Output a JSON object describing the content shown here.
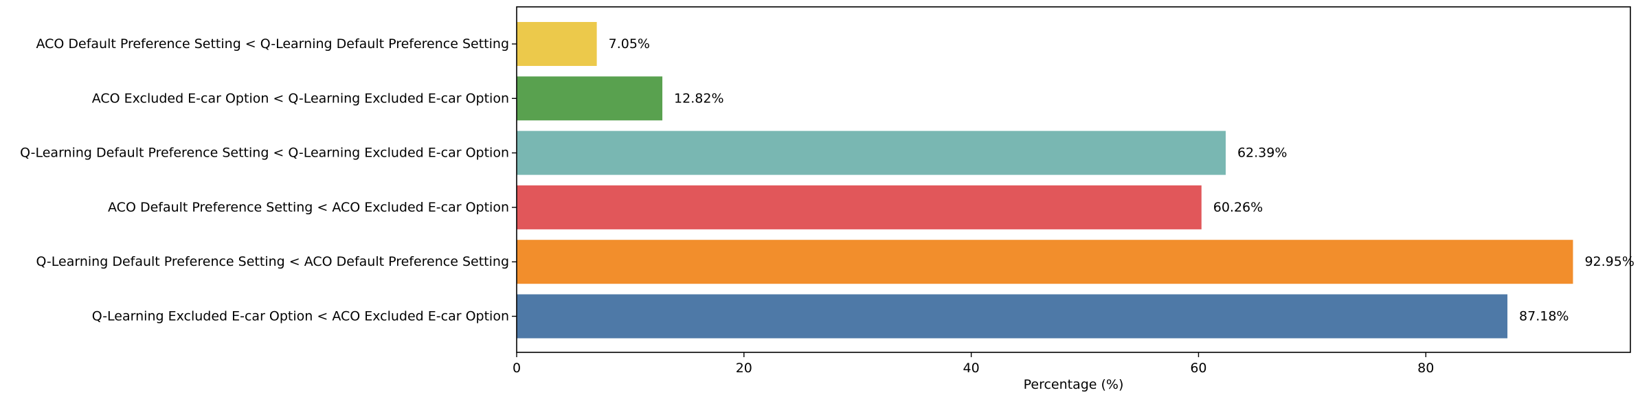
{
  "chart_data": {
    "type": "bar",
    "orientation": "horizontal",
    "title": "",
    "xlabel": "Percentage (%)",
    "ylabel": "",
    "xlim": [
      0,
      98
    ],
    "xticks": [
      0,
      20,
      40,
      60,
      80
    ],
    "grid": false,
    "legend": "none",
    "categories": [
      "ACO Default Preference Setting < Q-Learning Default Preference Setting",
      "ACO Excluded E-car Option < Q-Learning Excluded E-car Option",
      "Q-Learning Default Preference Setting < Q-Learning Excluded E-car Option",
      "ACO Default Preference Setting < ACO Excluded E-car Option",
      "Q-Learning Default Preference Setting < ACO Default Preference Setting",
      "Q-Learning Excluded E-car Option < ACO Excluded E-car Option"
    ],
    "values": [
      7.05,
      12.82,
      62.39,
      60.26,
      92.95,
      87.18
    ],
    "value_labels": [
      "7.05%",
      "12.82%",
      "62.39%",
      "60.26%",
      "92.95%",
      "87.18%"
    ],
    "colors": [
      "#ecc94b",
      "#59a14f",
      "#79b7b2",
      "#e1575a",
      "#f28e2c",
      "#4e79a7"
    ]
  }
}
